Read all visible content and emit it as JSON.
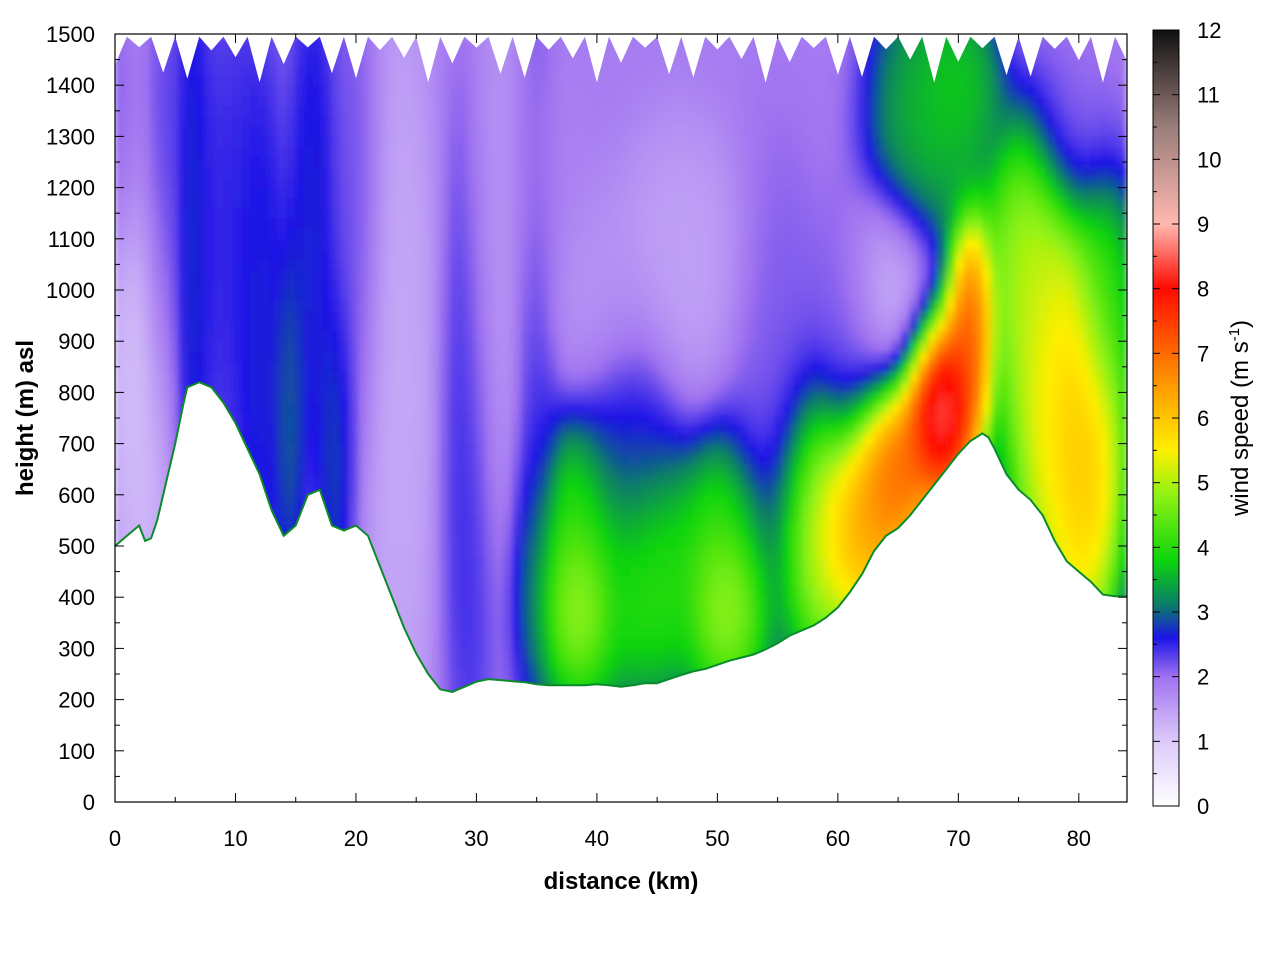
{
  "chart_data": {
    "type": "heatmap",
    "title": "",
    "xlabel": "distance (km)",
    "ylabel": "height (m) asl",
    "xlim": [
      0,
      84
    ],
    "ylim": [
      0,
      1500
    ],
    "xticks": [
      "0",
      "10",
      "20",
      "30",
      "40",
      "50",
      "60",
      "70",
      "80"
    ],
    "yticks": [
      "0",
      "100",
      "200",
      "300",
      "400",
      "500",
      "600",
      "700",
      "800",
      "900",
      "1000",
      "1100",
      "1200",
      "1300",
      "1400",
      "1500"
    ],
    "grid": true,
    "colorbar": {
      "label_main": "wind speed (m s",
      "label_sup": "-1",
      "label_end": ")",
      "range": [
        0,
        12
      ],
      "ticks": [
        "0",
        "1",
        "2",
        "3",
        "4",
        "5",
        "6",
        "7",
        "8",
        "9",
        "10",
        "11",
        "12"
      ],
      "colors": [
        {
          "v": 0,
          "c": "#ffffff"
        },
        {
          "v": 1,
          "c": "#dccafa"
        },
        {
          "v": 2,
          "c": "#9f72f0"
        },
        {
          "v": 2.6,
          "c": "#1c14e6"
        },
        {
          "v": 3.1,
          "c": "#0a7b6a"
        },
        {
          "v": 3.8,
          "c": "#0cd40c"
        },
        {
          "v": 4.8,
          "c": "#8ef214"
        },
        {
          "v": 5.5,
          "c": "#ffef00"
        },
        {
          "v": 6.5,
          "c": "#ff9a00"
        },
        {
          "v": 8,
          "c": "#ff0a00"
        },
        {
          "v": 9,
          "c": "#ffb8b0"
        },
        {
          "v": 10.5,
          "c": "#9a7e7a"
        },
        {
          "v": 12,
          "c": "#101010"
        }
      ]
    },
    "terrain_height_m": {
      "x": [
        0,
        1,
        2,
        2.5,
        3,
        3.5,
        4,
        5,
        5.7,
        6,
        7,
        8,
        9,
        10,
        11,
        12,
        13,
        14,
        15,
        16,
        17,
        18,
        19,
        20,
        21,
        22,
        23,
        24,
        25,
        26,
        27,
        28,
        29,
        30,
        31,
        32,
        33,
        34,
        35,
        36,
        37,
        38,
        39,
        40,
        41,
        42,
        43,
        44,
        45,
        46,
        47,
        48,
        49,
        50,
        51,
        52,
        53,
        54,
        55,
        56,
        57,
        58,
        59,
        60,
        61,
        62,
        63,
        64,
        65,
        66,
        67,
        68,
        69,
        70,
        71,
        72,
        72.5,
        73,
        74,
        75,
        76,
        77,
        78,
        79,
        80,
        81,
        82,
        83,
        84
      ],
      "y": [
        500,
        520,
        540,
        510,
        515,
        550,
        600,
        700,
        780,
        810,
        820,
        810,
        780,
        740,
        690,
        640,
        570,
        520,
        540,
        600,
        610,
        540,
        530,
        540,
        520,
        460,
        400,
        340,
        290,
        250,
        220,
        215,
        225,
        235,
        240,
        238,
        236,
        234,
        230,
        228,
        228,
        228,
        228,
        230,
        228,
        225,
        228,
        232,
        232,
        240,
        248,
        255,
        260,
        268,
        276,
        282,
        288,
        298,
        310,
        325,
        335,
        345,
        360,
        380,
        410,
        445,
        490,
        520,
        535,
        560,
        590,
        620,
        650,
        680,
        705,
        720,
        712,
        690,
        640,
        610,
        590,
        560,
        510,
        470,
        450,
        430,
        405,
        402,
        402
      ]
    },
    "wind_speed_blobs_ms": [
      {
        "x": 2.5,
        "y": 950,
        "rx": 2.5,
        "ry": 500,
        "v": 1.0
      },
      {
        "x": 1.2,
        "y": 1320,
        "rx": 2.5,
        "ry": 220,
        "v": 2.4
      },
      {
        "x": 3.8,
        "y": 1200,
        "rx": 1.2,
        "ry": 350,
        "v": 2.8
      },
      {
        "x": 6.2,
        "y": 1050,
        "rx": 1.3,
        "ry": 450,
        "v": 3.0
      },
      {
        "x": 9.5,
        "y": 1100,
        "rx": 3.0,
        "ry": 350,
        "v": 2.6
      },
      {
        "x": 12,
        "y": 900,
        "rx": 1.6,
        "ry": 400,
        "v": 2.8
      },
      {
        "x": 14.5,
        "y": 760,
        "rx": 1.0,
        "ry": 250,
        "v": 3.1
      },
      {
        "x": 16.5,
        "y": 1100,
        "rx": 1.6,
        "ry": 400,
        "v": 2.8
      },
      {
        "x": 18.5,
        "y": 700,
        "rx": 1.2,
        "ry": 250,
        "v": 3.0
      },
      {
        "x": 20,
        "y": 1100,
        "rx": 1.8,
        "ry": 400,
        "v": 2.3
      },
      {
        "x": 23.5,
        "y": 800,
        "rx": 2.5,
        "ry": 600,
        "v": 1.3
      },
      {
        "x": 29.5,
        "y": 700,
        "rx": 1.8,
        "ry": 500,
        "v": 2.6
      },
      {
        "x": 31.5,
        "y": 1000,
        "rx": 2.0,
        "ry": 450,
        "v": 1.5
      },
      {
        "x": 35,
        "y": 900,
        "rx": 1.5,
        "ry": 450,
        "v": 2.5
      },
      {
        "x": 35.5,
        "y": 1200,
        "rx": 3.0,
        "ry": 200,
        "v": 1.8
      },
      {
        "x": 40,
        "y": 980,
        "rx": 4.0,
        "ry": 160,
        "v": 1.6
      },
      {
        "x": 38.5,
        "y": 450,
        "rx": 3.5,
        "ry": 220,
        "v": 4.6
      },
      {
        "x": 38.5,
        "y": 380,
        "rx": 1.8,
        "ry": 100,
        "v": 5.3
      },
      {
        "x": 44.5,
        "y": 450,
        "rx": 3.0,
        "ry": 180,
        "v": 4.4
      },
      {
        "x": 51,
        "y": 440,
        "rx": 3.5,
        "ry": 200,
        "v": 4.7
      },
      {
        "x": 51,
        "y": 380,
        "rx": 2.0,
        "ry": 100,
        "v": 5.3
      },
      {
        "x": 47,
        "y": 1050,
        "rx": 4.0,
        "ry": 200,
        "v": 1.4
      },
      {
        "x": 43,
        "y": 700,
        "rx": 3.0,
        "ry": 200,
        "v": 2.7
      },
      {
        "x": 55,
        "y": 800,
        "rx": 3.0,
        "ry": 350,
        "v": 2.2
      },
      {
        "x": 58,
        "y": 550,
        "rx": 2.5,
        "ry": 200,
        "v": 5.8
      },
      {
        "x": 62,
        "y": 560,
        "rx": 3.0,
        "ry": 170,
        "v": 7.0
      },
      {
        "x": 64.5,
        "y": 650,
        "rx": 2.5,
        "ry": 130,
        "v": 7.8
      },
      {
        "x": 68.5,
        "y": 780,
        "rx": 2.5,
        "ry": 150,
        "v": 9.6
      },
      {
        "x": 71,
        "y": 950,
        "rx": 1.5,
        "ry": 150,
        "v": 7.8
      },
      {
        "x": 61,
        "y": 900,
        "rx": 3.0,
        "ry": 200,
        "v": 2.2
      },
      {
        "x": 65,
        "y": 1000,
        "rx": 3.0,
        "ry": 150,
        "v": 1.0
      },
      {
        "x": 67.5,
        "y": 1320,
        "rx": 3.5,
        "ry": 230,
        "v": 3.8
      },
      {
        "x": 70,
        "y": 1400,
        "rx": 2.5,
        "ry": 120,
        "v": 3.9
      },
      {
        "x": 76,
        "y": 1050,
        "rx": 3.0,
        "ry": 200,
        "v": 5.3
      },
      {
        "x": 78,
        "y": 800,
        "rx": 3.0,
        "ry": 300,
        "v": 6.0
      },
      {
        "x": 80.5,
        "y": 700,
        "rx": 2.5,
        "ry": 300,
        "v": 6.6
      },
      {
        "x": 82,
        "y": 1000,
        "rx": 2.0,
        "ry": 200,
        "v": 4.0
      },
      {
        "x": 80,
        "y": 1300,
        "rx": 3.0,
        "ry": 150,
        "v": 2.0
      }
    ],
    "wind_speed_background_ms": 1.9
  }
}
